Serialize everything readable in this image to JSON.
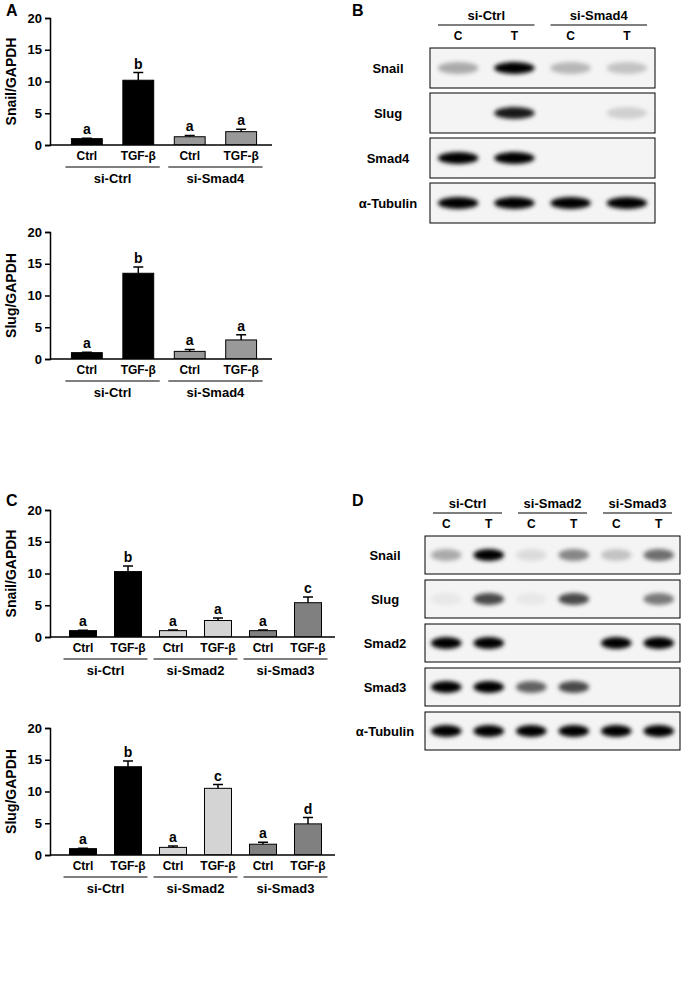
{
  "panel_labels": [
    "A",
    "B",
    "C",
    "D"
  ],
  "chart_data": [
    {
      "type": "bar",
      "y_label": "Snail/GAPDH",
      "categories": [
        "Ctrl",
        "TGF-β",
        "Ctrl",
        "TGF-β"
      ],
      "groups": [
        "si-Ctrl",
        "si-Ctrl",
        "si-Smad4",
        "si-Smad4"
      ],
      "values": [
        1.0,
        10.2,
        1.3,
        2.1
      ],
      "errors": [
        0.05,
        1.2,
        0.2,
        0.4
      ],
      "annotations": [
        "a",
        "b",
        "a",
        "a"
      ],
      "colors": [
        "#000000",
        "#000000",
        "#999999",
        "#999999"
      ],
      "ylim": [
        0,
        20
      ],
      "yticks": [
        0,
        5,
        10,
        15,
        20
      ]
    },
    {
      "type": "bar",
      "y_label": "Slug/GAPDH",
      "categories": [
        "Ctrl",
        "TGF-β",
        "Ctrl",
        "TGF-β"
      ],
      "groups": [
        "si-Ctrl",
        "si-Ctrl",
        "si-Smad4",
        "si-Smad4"
      ],
      "values": [
        1.0,
        13.5,
        1.2,
        3.0
      ],
      "errors": [
        0.05,
        1.0,
        0.3,
        0.8
      ],
      "annotations": [
        "a",
        "b",
        "a",
        "a"
      ],
      "colors": [
        "#000000",
        "#000000",
        "#999999",
        "#999999"
      ],
      "ylim": [
        0,
        20
      ],
      "yticks": [
        0,
        5,
        10,
        15,
        20
      ]
    },
    {
      "type": "bar",
      "y_label": "Snail/GAPDH",
      "categories": [
        "Ctrl",
        "TGF-β",
        "Ctrl",
        "TGF-β",
        "Ctrl",
        "TGF-β"
      ],
      "groups": [
        "si-Ctrl",
        "si-Ctrl",
        "si-Smad2",
        "si-Smad2",
        "si-Smad3",
        "si-Smad3"
      ],
      "values": [
        1.0,
        10.3,
        1.0,
        2.6,
        1.0,
        5.4
      ],
      "errors": [
        0.05,
        0.9,
        0.1,
        0.4,
        0.1,
        0.9
      ],
      "annotations": [
        "a",
        "b",
        "a",
        "a",
        "a",
        "c"
      ],
      "colors": [
        "#000000",
        "#000000",
        "#d4d4d4",
        "#d4d4d4",
        "#808080",
        "#808080"
      ],
      "ylim": [
        0,
        20
      ],
      "yticks": [
        0,
        5,
        10,
        15,
        20
      ]
    },
    {
      "type": "bar",
      "y_label": "Slug/GAPDH",
      "categories": [
        "Ctrl",
        "TGF-β",
        "Ctrl",
        "TGF-β",
        "Ctrl",
        "TGF-β"
      ],
      "groups": [
        "si-Ctrl",
        "si-Ctrl",
        "si-Smad2",
        "si-Smad2",
        "si-Smad3",
        "si-Smad3"
      ],
      "values": [
        1.0,
        13.9,
        1.2,
        10.5,
        1.7,
        4.9
      ],
      "errors": [
        0.05,
        0.9,
        0.2,
        0.6,
        0.3,
        1.0
      ],
      "annotations": [
        "a",
        "b",
        "a",
        "c",
        "a",
        "d"
      ],
      "colors": [
        "#000000",
        "#000000",
        "#d4d4d4",
        "#d4d4d4",
        "#808080",
        "#808080"
      ],
      "ylim": [
        0,
        20
      ],
      "yticks": [
        0,
        5,
        10,
        15,
        20
      ]
    }
  ],
  "blots": [
    {
      "groups": [
        "si-Ctrl",
        "si-Ctrl",
        "si-Smad4",
        "si-Smad4"
      ],
      "lanes": [
        "C",
        "T",
        "C",
        "T"
      ],
      "rows": [
        {
          "label": "Snail",
          "bands": [
            0.3,
            1.0,
            0.25,
            0.2
          ]
        },
        {
          "label": "Slug",
          "bands": [
            0.0,
            0.9,
            0.0,
            0.15
          ]
        },
        {
          "label": "Smad4",
          "bands": [
            1.0,
            1.0,
            0.0,
            0.0
          ]
        },
        {
          "label": "α-Tubulin",
          "bands": [
            1.0,
            1.0,
            1.0,
            1.0
          ]
        }
      ]
    },
    {
      "groups": [
        "si-Ctrl",
        "si-Ctrl",
        "si-Smad2",
        "si-Smad2",
        "si-Smad3",
        "si-Smad3"
      ],
      "lanes": [
        "C",
        "T",
        "C",
        "T",
        "C",
        "T"
      ],
      "rows": [
        {
          "label": "Snail",
          "bands": [
            0.3,
            1.0,
            0.1,
            0.45,
            0.2,
            0.55
          ]
        },
        {
          "label": "Slug",
          "bands": [
            0.05,
            0.7,
            0.05,
            0.7,
            0.0,
            0.5
          ]
        },
        {
          "label": "Smad2",
          "bands": [
            1.0,
            1.0,
            0.0,
            0.0,
            1.0,
            1.0
          ]
        },
        {
          "label": "Smad3",
          "bands": [
            1.0,
            1.0,
            0.6,
            0.7,
            0.0,
            0.0
          ]
        },
        {
          "label": "α-Tubulin",
          "bands": [
            1.0,
            1.0,
            1.0,
            1.0,
            1.0,
            1.0
          ]
        }
      ]
    }
  ]
}
